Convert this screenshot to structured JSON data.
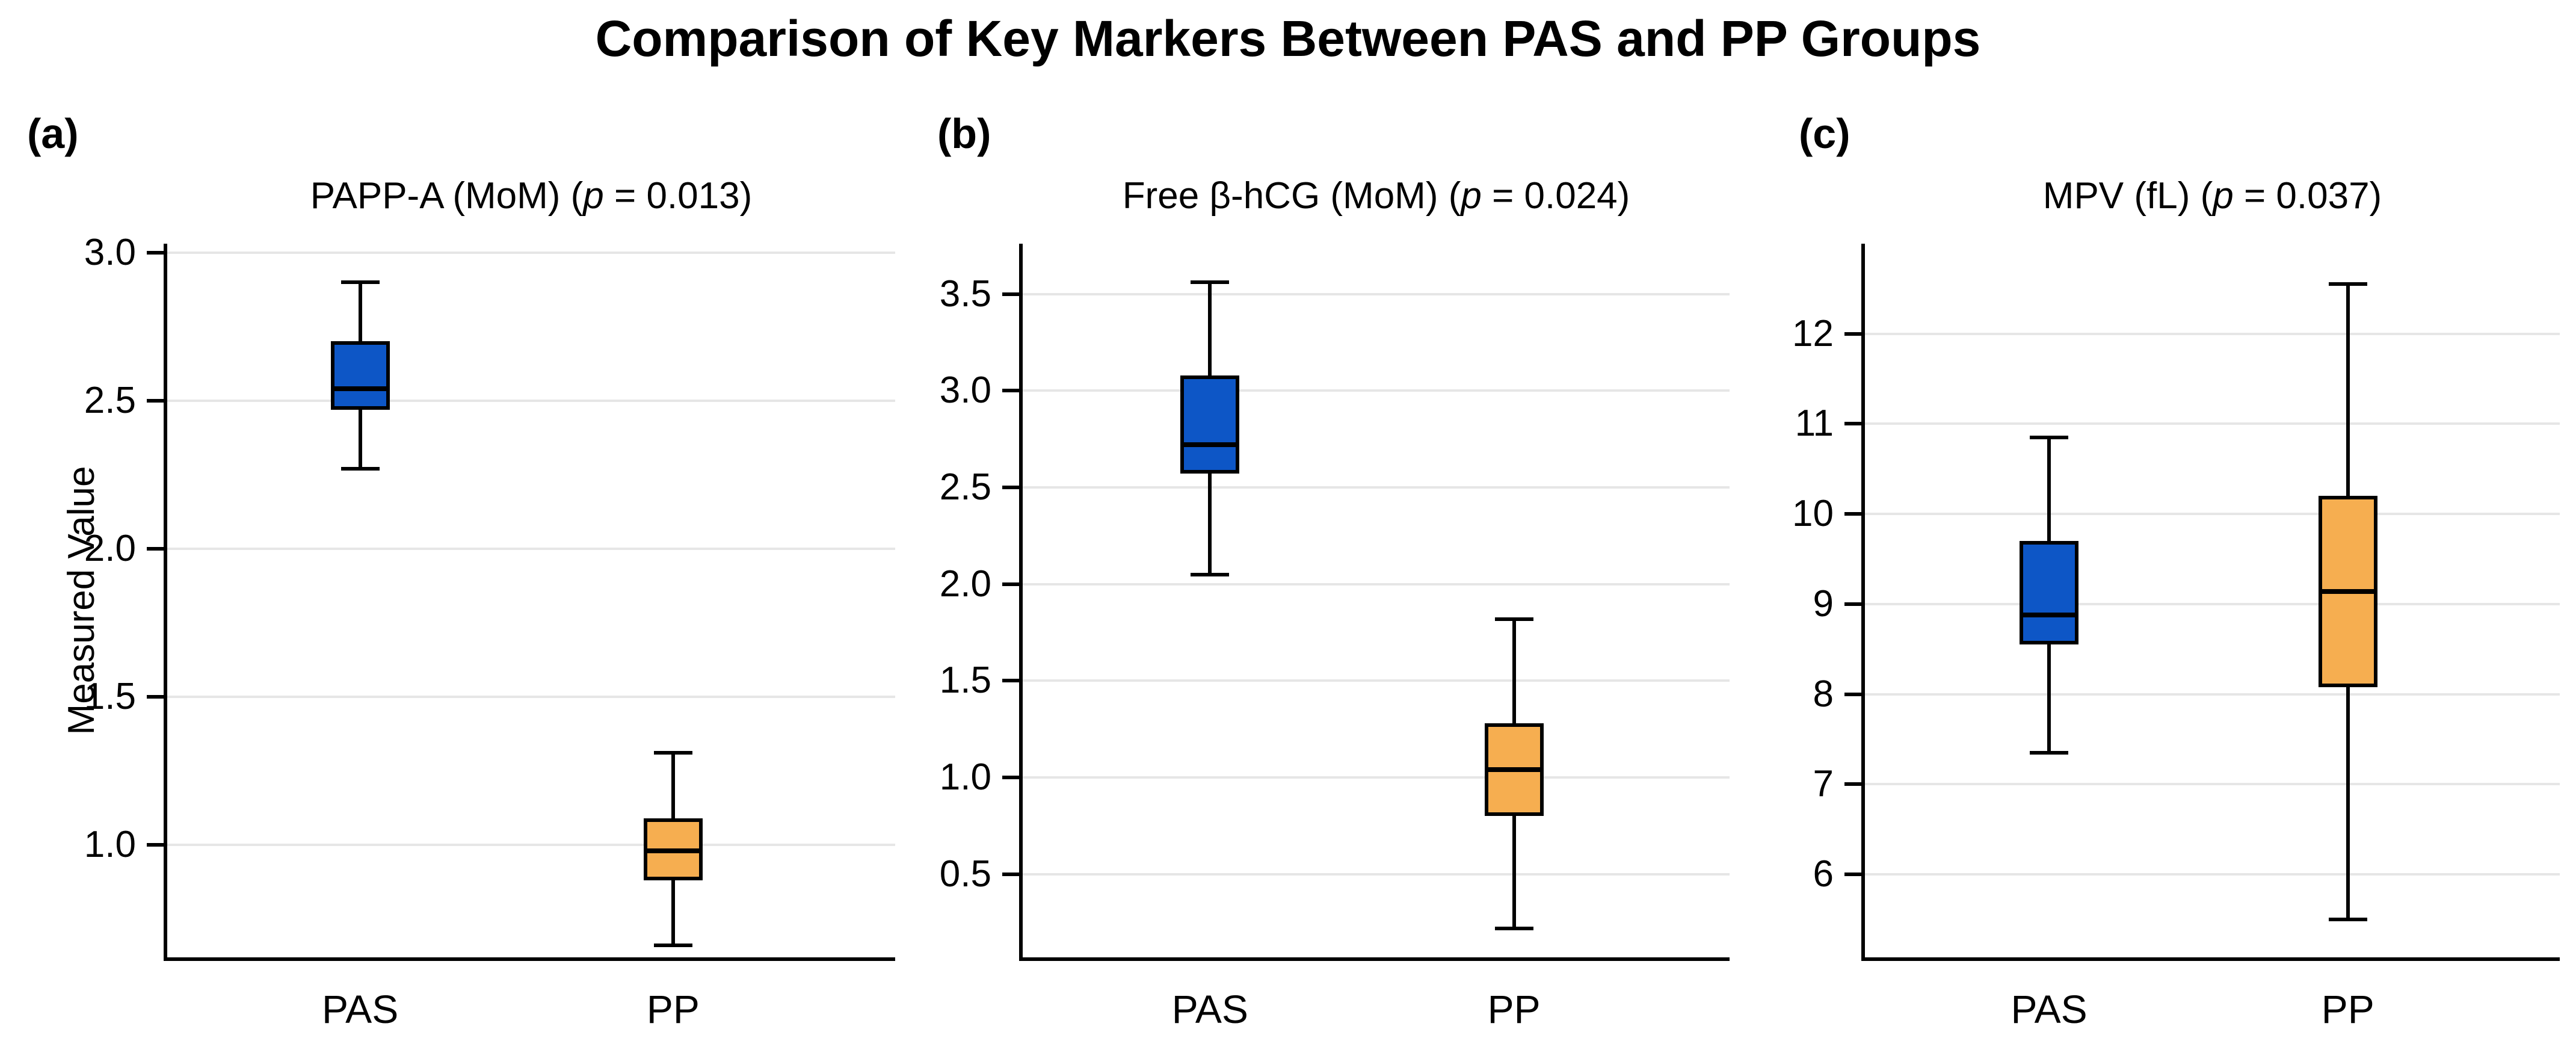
{
  "figure": {
    "title": "Comparison of Key Markers Between PAS and PP Groups",
    "background_color": "#ffffff",
    "text_color": "#000000",
    "gridline_color": "#e6e6e6",
    "pas_color": "#0d56c6",
    "pp_color": "#f6ae50"
  },
  "chart_data": [
    {
      "type": "boxplot",
      "panel_letter": "(a)",
      "marker": "PAPP-A (MoM)",
      "p_symbol": "p",
      "p_value": "0.013",
      "ylabel": "Measured Value",
      "categories": [
        "PAS",
        "PP"
      ],
      "ytick_labels": [
        "3.0",
        "2.5",
        "2.0",
        "1.5",
        "1.0"
      ],
      "yticks": [
        3.0,
        2.5,
        2.0,
        1.5,
        1.0
      ],
      "ylim": [
        0.62,
        3.03
      ],
      "grid": "horizontal",
      "series": [
        {
          "group": "PAS",
          "color": "#0d56c6",
          "whisker_low": 2.27,
          "q1": 2.47,
          "median": 2.54,
          "q3": 2.7,
          "whisker_high": 2.9
        },
        {
          "group": "PP",
          "color": "#f6ae50",
          "whisker_low": 0.66,
          "q1": 0.88,
          "median": 0.98,
          "q3": 1.09,
          "whisker_high": 1.31
        }
      ]
    },
    {
      "type": "boxplot",
      "panel_letter": "(b)",
      "marker": "Free β-hCG (MoM)",
      "p_symbol": "p",
      "p_value": "0.024",
      "ylabel": "",
      "categories": [
        "PAS",
        "PP"
      ],
      "ytick_labels": [
        "3.5",
        "3.0",
        "2.5",
        "2.0",
        "1.5",
        "1.0",
        "0.5"
      ],
      "yticks": [
        3.5,
        3.0,
        2.5,
        2.0,
        1.5,
        1.0,
        0.5
      ],
      "ylim": [
        0.07,
        3.76
      ],
      "grid": "horizontal",
      "series": [
        {
          "group": "PAS",
          "color": "#0d56c6",
          "whisker_low": 2.05,
          "q1": 2.57,
          "median": 2.72,
          "q3": 3.08,
          "whisker_high": 3.56
        },
        {
          "group": "PP",
          "color": "#f6ae50",
          "whisker_low": 0.22,
          "q1": 0.8,
          "median": 1.04,
          "q3": 1.28,
          "whisker_high": 1.82
        }
      ]
    },
    {
      "type": "boxplot",
      "panel_letter": "(c)",
      "marker": "MPV (fL)",
      "p_symbol": "p",
      "p_value": "0.037",
      "ylabel": "",
      "categories": [
        "PAS",
        "PP"
      ],
      "ytick_labels": [
        "12",
        "11",
        "10",
        "9",
        "8",
        "7",
        "6"
      ],
      "yticks": [
        12,
        11,
        10,
        9,
        8,
        7,
        6
      ],
      "ylim": [
        5.08,
        13.0
      ],
      "grid": "horizontal",
      "series": [
        {
          "group": "PAS",
          "color": "#0d56c6",
          "whisker_low": 7.35,
          "q1": 8.55,
          "median": 8.88,
          "q3": 9.7,
          "whisker_high": 10.85
        },
        {
          "group": "PP",
          "color": "#f6ae50",
          "whisker_low": 5.5,
          "q1": 8.08,
          "median": 9.14,
          "q3": 10.2,
          "whisker_high": 12.55
        }
      ]
    }
  ]
}
